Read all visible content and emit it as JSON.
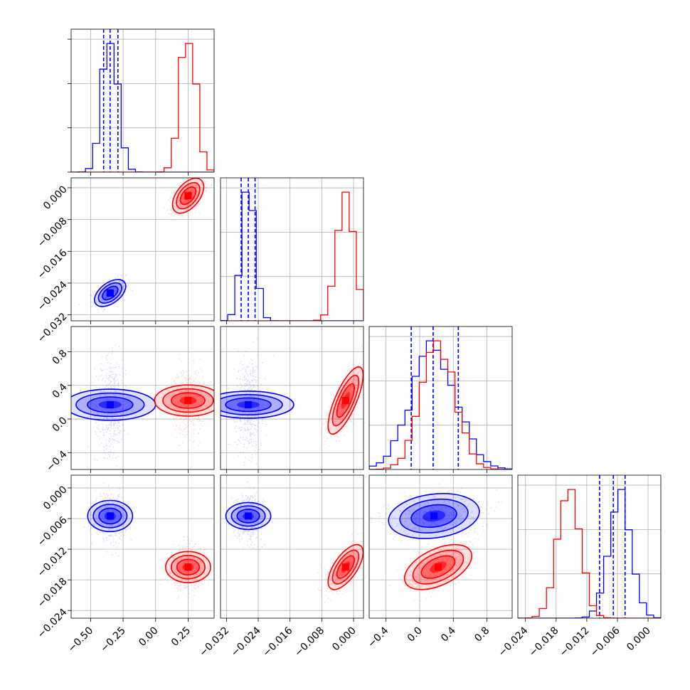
{
  "chart_data": {
    "type": "corner",
    "colors": {
      "blue": "#0000ff",
      "red": "#ff0000"
    },
    "grid": true,
    "series": [
      {
        "color_name": "blue",
        "means": [
          -0.35,
          -0.0265,
          0.17,
          -0.0055
        ],
        "sigmas": [
          0.06,
          0.0017,
          0.27,
          0.0022
        ],
        "quantiles": [
          [
            -0.4,
            -0.35,
            -0.29
          ],
          [
            -0.0283,
            -0.0265,
            -0.0248
          ],
          [
            -0.1,
            0.16,
            0.46
          ],
          [
            -0.0095,
            -0.0068,
            -0.0045
          ]
        ],
        "corr": [
          [
            1,
            0.5,
            0,
            0
          ],
          [
            0.5,
            1,
            0,
            0
          ],
          [
            0,
            0,
            1,
            0.2
          ],
          [
            0,
            0,
            0.2,
            1
          ]
        ]
      },
      {
        "color_name": "red",
        "means": [
          0.25,
          -0.002,
          0.22,
          -0.0155
        ],
        "sigmas": [
          0.06,
          0.0022,
          0.2,
          0.0022
        ],
        "corr": [
          [
            1,
            0.5,
            0,
            0
          ],
          [
            0.5,
            1,
            0.75,
            0.65
          ],
          [
            0,
            0.75,
            1,
            0.5
          ],
          [
            0,
            0.65,
            0.5,
            1
          ]
        ]
      }
    ],
    "params": [
      {
        "range": [
          -0.65,
          0.45
        ],
        "ticks": [
          -0.5,
          -0.25,
          0.0,
          0.25
        ],
        "tick_labels": [
          "−0.50",
          "−0.25",
          "0.00",
          "0.25"
        ]
      },
      {
        "range": [
          -0.0335,
          0.0025
        ],
        "ticks": [
          -0.032,
          -0.024,
          -0.016,
          -0.008,
          0.0
        ],
        "tick_labels": [
          "−0.032",
          "−0.024",
          "−0.016",
          "−0.008",
          "0.000"
        ]
      },
      {
        "range": [
          -0.6,
          1.1
        ],
        "ticks": [
          -0.4,
          0.0,
          0.4,
          0.8
        ],
        "tick_labels": [
          "−0.4",
          "0.0",
          "0.4",
          "0.8"
        ]
      },
      {
        "range": [
          -0.0255,
          0.0025
        ],
        "ticks": [
          -0.024,
          -0.018,
          -0.012,
          -0.006,
          0.0
        ],
        "tick_labels": [
          "−0.024",
          "−0.018",
          "−0.012",
          "−0.006",
          "0.000"
        ]
      }
    ]
  }
}
